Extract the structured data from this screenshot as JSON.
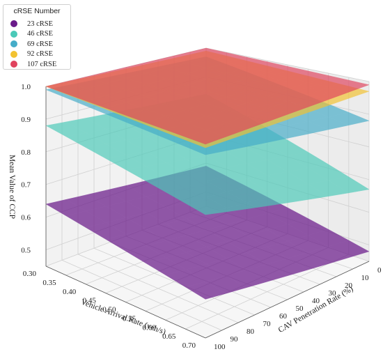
{
  "chart_data": {
    "type": "surface3d",
    "zlabel": "Mean Value of CCP",
    "xlabel": "Vehicle Arrival Rate (veh/s)",
    "ylabel": "CAV Penetration Rate (%)",
    "x_ticks": [
      "0.30",
      "0.35",
      "0.40",
      "0.45",
      "0.50",
      "0.55",
      "0.60",
      "0.65",
      "0.70"
    ],
    "y_ticks": [
      "0",
      "10",
      "20",
      "30",
      "40",
      "50",
      "60",
      "70",
      "80",
      "90",
      "100"
    ],
    "z_ticks": [
      "0.5",
      "0.6",
      "0.7",
      "0.8",
      "0.9",
      "1.0"
    ],
    "xlim": [
      0.3,
      0.7
    ],
    "ylim": [
      0,
      100
    ],
    "zlim": [
      0.45,
      1.0
    ],
    "legend": {
      "title": "cRSE Number",
      "placement": "top-left"
    },
    "series": [
      {
        "name": "23 cRSE",
        "color": "#6a1b8a",
        "corners": {
          "x0.30_y0": 0.59,
          "x0.30_y100": 0.64,
          "x0.70_y0": 0.48,
          "x0.70_y100": 0.56
        }
      },
      {
        "name": "46 cRSE",
        "color": "#4ac9b8",
        "corners": {
          "x0.30_y0": 0.84,
          "x0.30_y100": 0.88,
          "x0.70_y0": 0.67,
          "x0.70_y100": 0.8
        }
      },
      {
        "name": "69 cRSE",
        "color": "#45acc8",
        "corners": {
          "x0.30_y0": 0.97,
          "x0.30_y100": 0.99,
          "x0.70_y0": 0.88,
          "x0.70_y100": 0.97
        }
      },
      {
        "name": "92 cRSE",
        "color": "#f2c231",
        "corners": {
          "x0.30_y0": 0.99,
          "x0.30_y100": 1.0,
          "x0.70_y0": 0.97,
          "x0.70_y100": 0.99
        }
      },
      {
        "name": "107 cRSE",
        "color": "#e0435e",
        "corners": {
          "x0.30_y0": 1.0,
          "x0.30_y100": 1.0,
          "x0.70_y0": 0.99,
          "x0.70_y100": 1.0
        }
      }
    ]
  }
}
